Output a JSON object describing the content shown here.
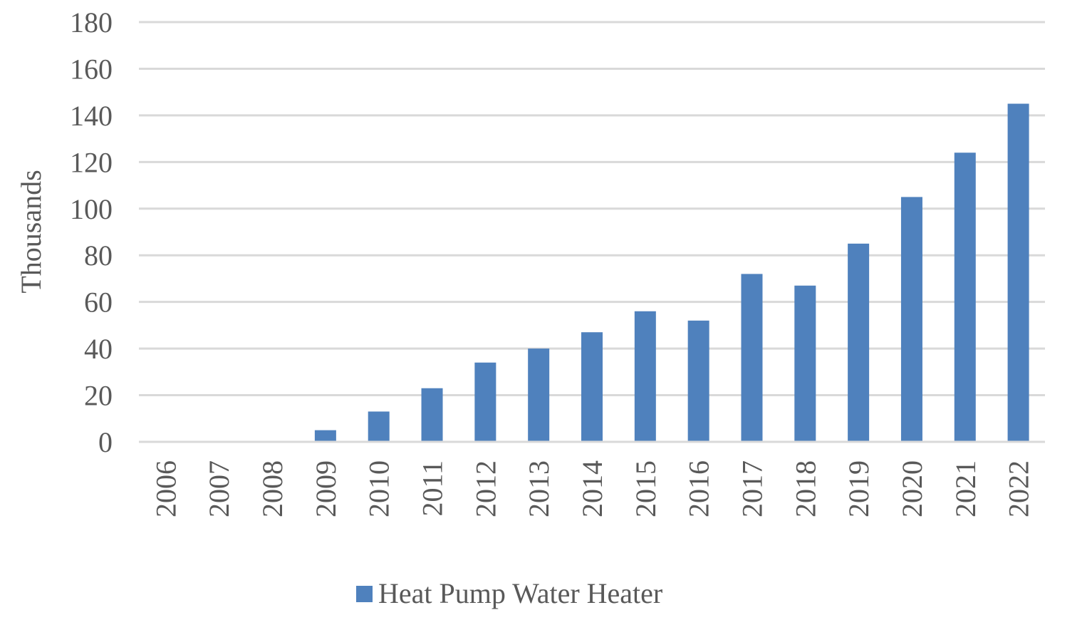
{
  "chart_data": {
    "type": "bar",
    "title": "",
    "xlabel": "",
    "ylabel": "Thousands",
    "ylim": [
      0,
      180
    ],
    "yticks": [
      0,
      20,
      40,
      60,
      80,
      100,
      120,
      140,
      160,
      180
    ],
    "grid": true,
    "legend_position": "bottom",
    "categories": [
      "2006",
      "2007",
      "2008",
      "2009",
      "2010",
      "2011",
      "2012",
      "2013",
      "2014",
      "2015",
      "2016",
      "2017",
      "2018",
      "2019",
      "2020",
      "2021",
      "2022"
    ],
    "series": [
      {
        "name": "Heat Pump Water Heater",
        "color": "#4f81bd",
        "values": [
          0,
          0,
          0,
          5,
          13,
          23,
          34,
          40,
          47,
          56,
          52,
          72,
          67,
          85,
          105,
          124,
          145
        ]
      }
    ]
  },
  "colors": {
    "bar": "#4f81bd",
    "grid": "#d9d9d9",
    "text": "#595959"
  }
}
